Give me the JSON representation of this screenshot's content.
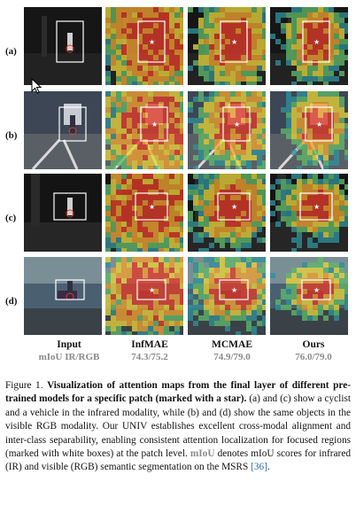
{
  "row_labels": [
    "(a)",
    "(b)",
    "(c)",
    "(d)"
  ],
  "columns": [
    {
      "name": "Input",
      "score": "mIoU IR/RGB"
    },
    {
      "name": "InfMAE",
      "score": "74.3/75.2"
    },
    {
      "name": "MCMAE",
      "score": "74.9/79.0"
    },
    {
      "name": "Ours",
      "score": "76.0/79.0"
    }
  ],
  "caption": {
    "label": "Figure 1.",
    "bold": "Visualization of attention maps from the final layer of different pre-trained models for a specific patch (marked with a star).",
    "text1": "(a) and (c) show a cyclist and a vehicle in the infrared modality, while (b) and (d) show the same objects in the visible RGB modality. Our UNIV establishes excellent cross-modal alignment and inter-class separability, enabling consistent attention localization for focused regions (marked with white boxes) at the patch level.",
    "miou": "mIoU",
    "text2": "denotes mIoU scores for infrared (IR) and visible (RGB) semantic segmentation on the MSRS",
    "ref": "[36]",
    "end": "."
  },
  "colors": {
    "heat_high": "#e23b2a",
    "heat_mid": "#e8d23a",
    "heat_low": "#2f8f9a",
    "caption_gray": "#8a8a8a",
    "ref_blue": "#2d6fb2"
  }
}
